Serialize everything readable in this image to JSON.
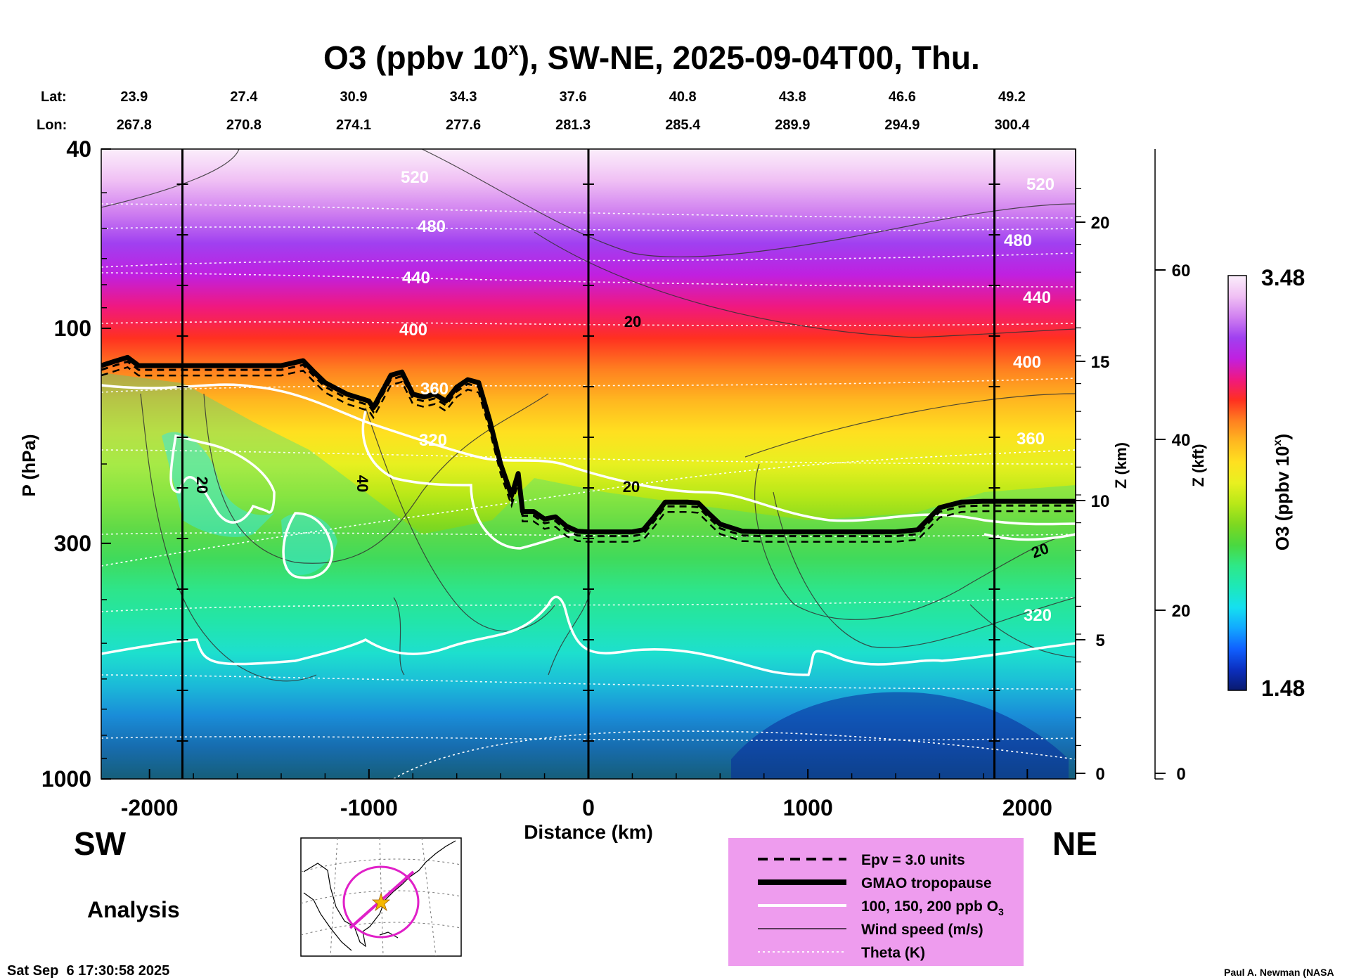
{
  "chart_data": {
    "type": "cross-section contour",
    "title": "O3 (ppbv 10",
    "title_superscript": "x",
    "title_rest": "), SW-NE, 2025-09-04T00, Thu.",
    "lat_label": "Lat:",
    "lon_label": "Lon:",
    "lat": [
      "23.9",
      "27.4",
      "30.9",
      "34.3",
      "37.6",
      "40.8",
      "43.8",
      "46.6",
      "49.2"
    ],
    "lon": [
      "267.8",
      "270.8",
      "274.1",
      "277.6",
      "281.3",
      "285.4",
      "289.9",
      "294.9",
      "300.4"
    ],
    "station_distances_km": [
      -2070,
      -1570,
      -1070,
      -570,
      -70,
      430,
      930,
      1430,
      1930
    ],
    "xlabel": "Distance (km)",
    "xlim": [
      -2220,
      2220
    ],
    "x_ticks": [
      -2000,
      -1000,
      0,
      1000,
      2000
    ],
    "x_tick_labels": [
      "-2000",
      "-1000",
      "0",
      "1000",
      "2000"
    ],
    "ylabel": "P (hPa)",
    "ylim_hpa": [
      1000,
      40
    ],
    "y_ticks_hpa": [
      40,
      100,
      300,
      1000
    ],
    "y_tick_labels": [
      "40",
      "100",
      "300",
      "1000"
    ],
    "zkm_label": "Z (km)",
    "zkm_ticks": [
      "0",
      "5",
      "10",
      "15",
      "20"
    ],
    "zkft_label": "Z (kft)",
    "zkft_ticks": [
      "0",
      "20",
      "40",
      "60"
    ],
    "vertical_lines_km": [
      -1850,
      0,
      1850
    ],
    "colorbar": {
      "label": "O3 (ppbv 10",
      "label_sup": "x",
      "label_end": ")",
      "max": "3.48",
      "min": "1.48"
    },
    "theta_labels": [
      "520",
      "480",
      "440",
      "400",
      "360",
      "320",
      "520",
      "480",
      "440",
      "400",
      "360",
      "320"
    ],
    "wind_labels": [
      "20",
      "40",
      "20",
      "20",
      "20"
    ],
    "tropopause_profile": [
      [
        -2220,
        121
      ],
      [
        -2150,
        118
      ],
      [
        -2100,
        116
      ],
      [
        -2050,
        121
      ],
      [
        -1900,
        121
      ],
      [
        -1700,
        121
      ],
      [
        -1400,
        121
      ],
      [
        -1300,
        118
      ],
      [
        -1250,
        125
      ],
      [
        -1200,
        132
      ],
      [
        -1100,
        140
      ],
      [
        -1000,
        145
      ],
      [
        -980,
        150
      ],
      [
        -900,
        127
      ],
      [
        -850,
        125
      ],
      [
        -800,
        140
      ],
      [
        -750,
        142
      ],
      [
        -700,
        140
      ],
      [
        -650,
        145
      ],
      [
        -600,
        135
      ],
      [
        -550,
        130
      ],
      [
        -500,
        132
      ],
      [
        -450,
        160
      ],
      [
        -400,
        200
      ],
      [
        -350,
        235
      ],
      [
        -320,
        210
      ],
      [
        -300,
        255
      ],
      [
        -250,
        255
      ],
      [
        -200,
        265
      ],
      [
        -150,
        262
      ],
      [
        -100,
        275
      ],
      [
        -50,
        282
      ],
      [
        0,
        283
      ],
      [
        100,
        283
      ],
      [
        200,
        283
      ],
      [
        250,
        280
      ],
      [
        300,
        262
      ],
      [
        350,
        243
      ],
      [
        400,
        243
      ],
      [
        450,
        243
      ],
      [
        500,
        244
      ],
      [
        550,
        258
      ],
      [
        600,
        272
      ],
      [
        700,
        282
      ],
      [
        800,
        283
      ],
      [
        1000,
        283
      ],
      [
        1200,
        283
      ],
      [
        1400,
        283
      ],
      [
        1500,
        280
      ],
      [
        1600,
        250
      ],
      [
        1700,
        243
      ],
      [
        1800,
        242
      ],
      [
        2000,
        242
      ],
      [
        2220,
        242
      ]
    ],
    "series": [
      {
        "name": "Epv = 3.0 units",
        "style": "dashed"
      },
      {
        "name": "GMAO tropopause",
        "style": "thick"
      },
      {
        "name": "100, 150, 200 ppb O",
        "name_sub": "3",
        "style": "white"
      },
      {
        "name": "Wind speed (m/s)",
        "style": "thin"
      },
      {
        "name": "Theta (K)",
        "style": "dotted"
      }
    ]
  },
  "labels": {
    "sw": "SW",
    "ne": "NE",
    "analysis": "Analysis",
    "timestamp": "Sat Sep  6 17:30:58 2025",
    "credit": "Paul A. Newman (NASA"
  },
  "colors": {
    "ozone_scale": [
      "#0a1a6e",
      "#0b2fbf",
      "#1060ff",
      "#12a8ff",
      "#15e0f0",
      "#1de8b8",
      "#2ee888",
      "#4ad840",
      "#7ed820",
      "#b8e818",
      "#e8f020",
      "#ffe020",
      "#ffb820",
      "#ff8020",
      "#ff3020",
      "#f01880",
      "#c020e0",
      "#a040f0",
      "#d080f0",
      "#f0c0f4",
      "#fbeefb"
    ],
    "legend_bg": "#ee9cee",
    "map_circle": "#e020c8",
    "map_star": "#f5b800"
  }
}
